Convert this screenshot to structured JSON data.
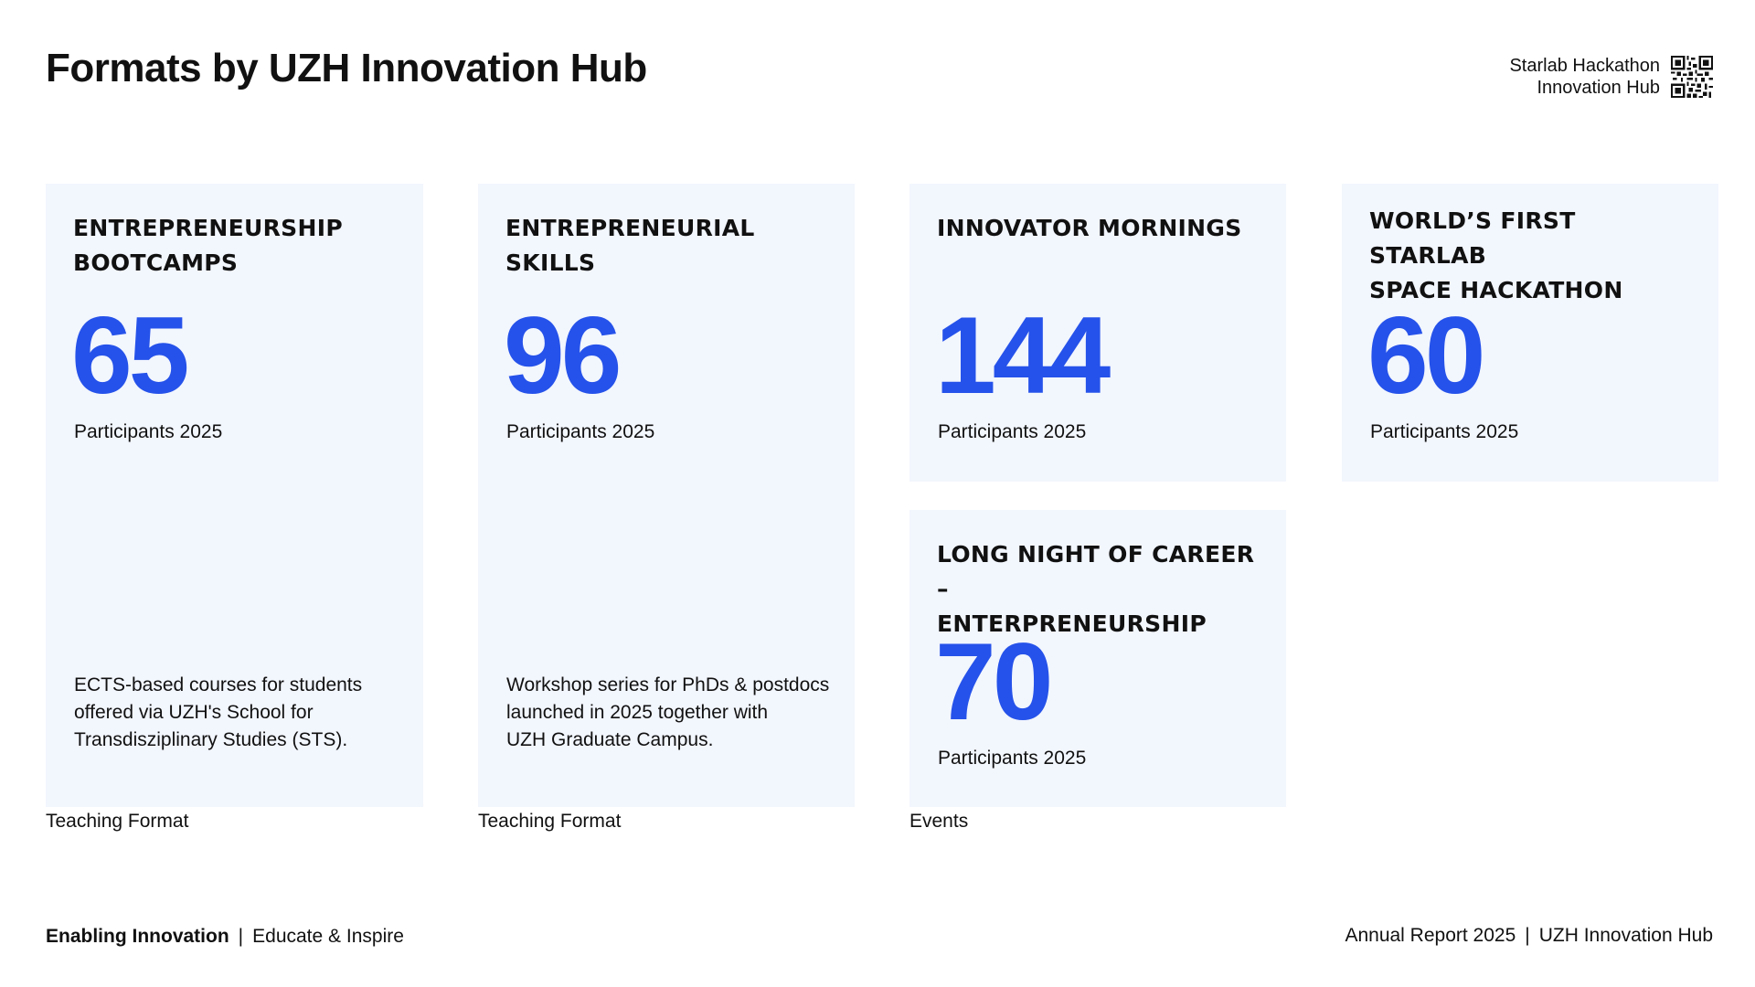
{
  "header": {
    "title": "Formats by UZH Innovation Hub",
    "qr_line1": "Starlab Hackathon",
    "qr_line2": "Innovation Hub"
  },
  "cards": [
    {
      "title_line1": "ENTREPRENEURSHIP",
      "title_line2": "BOOTCAMPS",
      "number": "65",
      "subtitle": "Participants 2025",
      "desc_line1": "ECTS-based courses for students",
      "desc_line2": "offered via UZH's School for",
      "desc_line3": "Transdisziplinary Studies (STS).",
      "category": "Teaching Format"
    },
    {
      "title_line1": "ENTREPRENEURIAL SKILLS",
      "number": "96",
      "subtitle": "Participants 2025",
      "desc_line1": "Workshop series for PhDs & postdocs",
      "desc_line2": "launched in 2025 together with",
      "desc_line3": "UZH Graduate Campus.",
      "category": "Teaching Format"
    },
    {
      "title_line1": "INNOVATOR MORNINGS",
      "number": "144",
      "subtitle": "Participants 2025"
    },
    {
      "title_line1": "WORLD’S FIRST STARLAB",
      "title_line2": "SPACE HACKATHON",
      "number": "60",
      "subtitle": "Participants 2025"
    },
    {
      "title_line1": "LONG NIGHT OF CAREER –",
      "title_line2": "ENTERPRENEURSHIP",
      "number": "70",
      "subtitle": "Participants 2025",
      "category": "Events"
    }
  ],
  "footer": {
    "left_strong": "Enabling Innovation",
    "left_rest": "Educate & Inspire",
    "right_1": "Annual Report 2025",
    "right_2": "UZH Innovation Hub",
    "separator": "|"
  },
  "colors": {
    "accent": "#2552ea",
    "card_bg": "#f2f6fd"
  }
}
